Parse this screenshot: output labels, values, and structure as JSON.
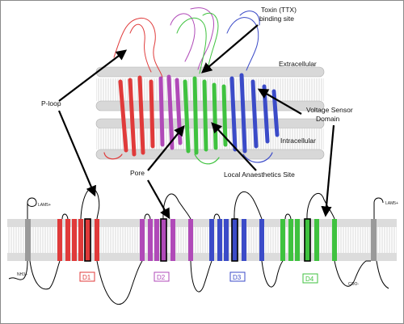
{
  "labels": {
    "toxin_site": [
      "Toxin (TTX)",
      "binding site"
    ],
    "extracellular": "Extracellular",
    "intracellular": "Intracellular",
    "voltage_sensor": [
      "Voltage Sensor",
      "Domain"
    ],
    "p_loop": "P-loop",
    "pore": "Pore",
    "local_anaesthetics": "Local Anaesthetics Site"
  },
  "topology": {
    "n_terminus": "NH3+",
    "c_terminus": "COO-",
    "lam_left": "LAM5+",
    "lam_right": "LAM5+",
    "domains": [
      {
        "label": "D1",
        "color": "#e03a3a"
      },
      {
        "label": "D2",
        "color": "#b04ab8"
      },
      {
        "label": "D3",
        "color": "#3b4bc8"
      },
      {
        "label": "D4",
        "color": "#3fc23f"
      }
    ]
  },
  "colors": {
    "membrane": "#c8c8c8",
    "border": "#8a8a8a",
    "arrow": "#000000"
  }
}
